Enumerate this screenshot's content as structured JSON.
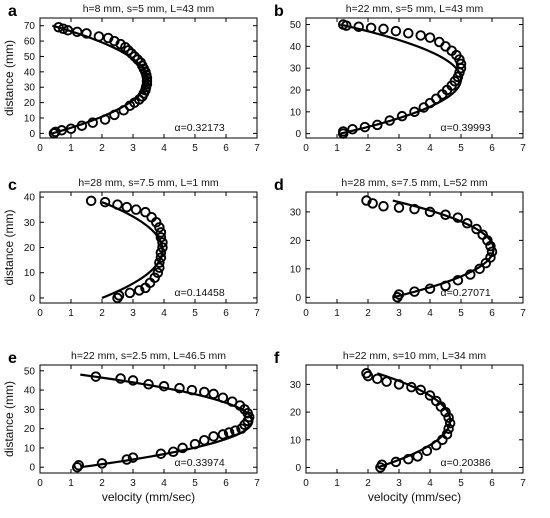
{
  "chart_data": [
    {
      "panel_label": "a",
      "type": "scatter",
      "title": "h=8 mm, s=5 mm, L=43 mm",
      "xlabel": "",
      "ylabel": "distance (mm)",
      "xlim": [
        0,
        7
      ],
      "ylim": [
        -3,
        75
      ],
      "xticks": [
        "0",
        "1",
        "2",
        "3",
        "4",
        "5",
        "6",
        "7"
      ],
      "yticks": [
        "0",
        "10",
        "20",
        "30",
        "40",
        "50",
        "60",
        "70"
      ],
      "annotation": "α=0.32173",
      "points": [
        [
          0.45,
          0
        ],
        [
          0.5,
          1
        ],
        [
          0.7,
          2
        ],
        [
          1.0,
          3
        ],
        [
          1.35,
          5
        ],
        [
          1.7,
          7
        ],
        [
          2.1,
          9
        ],
        [
          2.4,
          12
        ],
        [
          2.7,
          15
        ],
        [
          2.9,
          18
        ],
        [
          3.05,
          20
        ],
        [
          3.2,
          22
        ],
        [
          3.3,
          24
        ],
        [
          3.35,
          26
        ],
        [
          3.4,
          28
        ],
        [
          3.42,
          30
        ],
        [
          3.45,
          32
        ],
        [
          3.45,
          34
        ],
        [
          3.45,
          36
        ],
        [
          3.43,
          38
        ],
        [
          3.4,
          40
        ],
        [
          3.35,
          42
        ],
        [
          3.3,
          44
        ],
        [
          3.25,
          46
        ],
        [
          3.15,
          48
        ],
        [
          3.05,
          50
        ],
        [
          2.95,
          52
        ],
        [
          2.85,
          54
        ],
        [
          2.75,
          56
        ],
        [
          2.6,
          58
        ],
        [
          2.4,
          60
        ],
        [
          2.2,
          62
        ],
        [
          1.9,
          63
        ],
        [
          1.5,
          65
        ],
        [
          1.2,
          66
        ],
        [
          0.9,
          67
        ],
        [
          0.75,
          68
        ],
        [
          0.6,
          69
        ]
      ],
      "fit": {
        "vmax": 3.45,
        "vmin": 0.4,
        "y0": 0,
        "y1": 70
      }
    },
    {
      "panel_label": "b",
      "type": "scatter",
      "title": "h=22 mm, s=5 mm, L=43 mm",
      "xlabel": "",
      "ylabel": "",
      "xlim": [
        0,
        7
      ],
      "ylim": [
        -2,
        53
      ],
      "xticks": [
        "0",
        "1",
        "2",
        "3",
        "4",
        "5",
        "6",
        "7"
      ],
      "yticks": [
        "0",
        "10",
        "20",
        "30",
        "40",
        "50"
      ],
      "annotation": "α=0.39993",
      "points": [
        [
          1.2,
          0
        ],
        [
          1.2,
          1
        ],
        [
          1.5,
          2
        ],
        [
          1.9,
          3
        ],
        [
          2.3,
          4
        ],
        [
          2.7,
          6
        ],
        [
          3.1,
          8
        ],
        [
          3.5,
          10
        ],
        [
          3.8,
          12
        ],
        [
          4.0,
          14
        ],
        [
          4.2,
          16
        ],
        [
          4.4,
          18
        ],
        [
          4.55,
          20
        ],
        [
          4.7,
          22
        ],
        [
          4.8,
          24
        ],
        [
          4.9,
          26
        ],
        [
          4.95,
          28
        ],
        [
          5.0,
          30
        ],
        [
          5.0,
          32
        ],
        [
          4.95,
          34
        ],
        [
          4.85,
          36
        ],
        [
          4.7,
          38
        ],
        [
          4.5,
          40
        ],
        [
          4.3,
          42
        ],
        [
          4.0,
          44
        ],
        [
          3.7,
          45
        ],
        [
          3.3,
          46
        ],
        [
          2.9,
          47
        ],
        [
          2.5,
          48
        ],
        [
          2.1,
          48.5
        ],
        [
          1.7,
          49
        ],
        [
          1.3,
          49.5
        ],
        [
          1.2,
          50
        ]
      ],
      "fit": {
        "vmax": 5.0,
        "vmin": 1.1,
        "y0": 0,
        "y1": 50
      }
    },
    {
      "panel_label": "c",
      "type": "scatter",
      "title": "h=28 mm, s=7.5 mm, L=1 mm",
      "xlabel": "",
      "ylabel": "distance (mm)",
      "xlim": [
        0,
        7
      ],
      "ylim": [
        -2,
        42
      ],
      "xticks": [
        "0",
        "1",
        "2",
        "3",
        "4",
        "5",
        "6",
        "7"
      ],
      "yticks": [
        "0",
        "10",
        "20",
        "30",
        "40"
      ],
      "annotation": "α=0.14458",
      "points": [
        [
          2.5,
          0
        ],
        [
          2.55,
          1
        ],
        [
          2.9,
          2
        ],
        [
          3.2,
          3
        ],
        [
          3.4,
          4
        ],
        [
          3.55,
          6
        ],
        [
          3.7,
          8
        ],
        [
          3.8,
          10
        ],
        [
          3.85,
          12
        ],
        [
          3.85,
          14
        ],
        [
          3.9,
          16
        ],
        [
          3.9,
          18
        ],
        [
          3.95,
          20
        ],
        [
          3.95,
          22
        ],
        [
          3.9,
          24
        ],
        [
          3.9,
          26
        ],
        [
          3.85,
          28
        ],
        [
          3.75,
          30
        ],
        [
          3.6,
          32
        ],
        [
          3.4,
          34
        ],
        [
          3.1,
          35
        ],
        [
          2.8,
          36
        ],
        [
          2.5,
          37
        ],
        [
          2.1,
          38
        ],
        [
          1.65,
          38.5
        ]
      ],
      "fit": {
        "vmax": 3.95,
        "vmin": 2.0,
        "y0": 0,
        "y1": 38
      }
    },
    {
      "panel_label": "d",
      "type": "scatter",
      "title": "h=28 mm, s=7.5 mm, L=52 mm",
      "xlabel": "",
      "ylabel": "",
      "xlim": [
        0,
        7
      ],
      "ylim": [
        -2,
        37
      ],
      "xticks": [
        "0",
        "1",
        "2",
        "3",
        "4",
        "5",
        "6",
        "7"
      ],
      "yticks": [
        "0",
        "10",
        "20",
        "30"
      ],
      "annotation": "α=0.27071",
      "points": [
        [
          2.95,
          0
        ],
        [
          3.0,
          1
        ],
        [
          3.5,
          2
        ],
        [
          4.0,
          3
        ],
        [
          4.5,
          4
        ],
        [
          4.9,
          6
        ],
        [
          5.3,
          8
        ],
        [
          5.6,
          10
        ],
        [
          5.8,
          12
        ],
        [
          5.95,
          14
        ],
        [
          6.0,
          16
        ],
        [
          5.95,
          18
        ],
        [
          5.85,
          20
        ],
        [
          5.7,
          22
        ],
        [
          5.5,
          24
        ],
        [
          5.2,
          26
        ],
        [
          4.9,
          28
        ],
        [
          4.5,
          29
        ],
        [
          4.0,
          30
        ],
        [
          3.5,
          31
        ],
        [
          3.0,
          31.5
        ],
        [
          2.5,
          32
        ],
        [
          2.15,
          33
        ],
        [
          1.95,
          34
        ]
      ],
      "fit": {
        "vmax": 6.05,
        "vmin": 2.8,
        "y0": 0,
        "y1": 34
      }
    },
    {
      "panel_label": "e",
      "type": "scatter",
      "title": "h=22 mm, s=2.5 mm, L=46.5 mm",
      "xlabel": "velocity (mm/sec)",
      "ylabel": "distance (mm)",
      "xlim": [
        0,
        7
      ],
      "ylim": [
        -3,
        53
      ],
      "xticks": [
        "0",
        "1",
        "2",
        "3",
        "4",
        "5",
        "6",
        "7"
      ],
      "yticks": [
        "0",
        "10",
        "20",
        "30",
        "40",
        "50"
      ],
      "annotation": "α=0.33974",
      "points": [
        [
          1.2,
          0
        ],
        [
          1.25,
          1
        ],
        [
          2.0,
          2
        ],
        [
          2.8,
          4
        ],
        [
          3.0,
          5
        ],
        [
          3.9,
          7
        ],
        [
          4.3,
          8
        ],
        [
          4.6,
          10
        ],
        [
          5.0,
          12
        ],
        [
          5.3,
          14
        ],
        [
          5.6,
          16
        ],
        [
          5.9,
          17
        ],
        [
          6.1,
          18
        ],
        [
          6.3,
          19
        ],
        [
          6.5,
          20
        ],
        [
          6.6,
          22
        ],
        [
          6.7,
          24
        ],
        [
          6.75,
          26
        ],
        [
          6.7,
          28
        ],
        [
          6.6,
          30
        ],
        [
          6.45,
          32
        ],
        [
          6.2,
          34
        ],
        [
          5.9,
          36
        ],
        [
          5.6,
          38
        ],
        [
          5.3,
          39
        ],
        [
          4.9,
          40
        ],
        [
          4.5,
          41
        ],
        [
          4.0,
          42
        ],
        [
          3.5,
          43
        ],
        [
          3.0,
          45
        ],
        [
          2.6,
          46
        ],
        [
          1.8,
          47
        ]
      ],
      "fit": {
        "vmax": 6.85,
        "vmin": 1.3,
        "y0": 0,
        "y1": 48
      }
    },
    {
      "panel_label": "f",
      "type": "scatter",
      "title": "h=22 mm, s=10 mm, L=34 mm",
      "xlabel": "velocity (mm/sec)",
      "ylabel": "",
      "xlim": [
        0,
        7
      ],
      "ylim": [
        -2,
        37
      ],
      "xticks": [
        "0",
        "1",
        "2",
        "3",
        "4",
        "5",
        "6",
        "7"
      ],
      "yticks": [
        "0",
        "10",
        "20",
        "30"
      ],
      "annotation": "α=0.20386",
      "points": [
        [
          2.4,
          0
        ],
        [
          2.45,
          1
        ],
        [
          2.9,
          2
        ],
        [
          3.3,
          3
        ],
        [
          3.6,
          4
        ],
        [
          3.9,
          6
        ],
        [
          4.2,
          8
        ],
        [
          4.4,
          10
        ],
        [
          4.55,
          12
        ],
        [
          4.6,
          14
        ],
        [
          4.65,
          16
        ],
        [
          4.6,
          18
        ],
        [
          4.5,
          20
        ],
        [
          4.35,
          22
        ],
        [
          4.2,
          24
        ],
        [
          4.0,
          26
        ],
        [
          3.7,
          28
        ],
        [
          3.4,
          29
        ],
        [
          3.0,
          30
        ],
        [
          2.6,
          31
        ],
        [
          2.3,
          32
        ],
        [
          2.0,
          33
        ],
        [
          1.95,
          34
        ]
      ],
      "fit": {
        "vmax": 4.65,
        "vmin": 2.3,
        "y0": 0,
        "y1": 34
      }
    }
  ]
}
